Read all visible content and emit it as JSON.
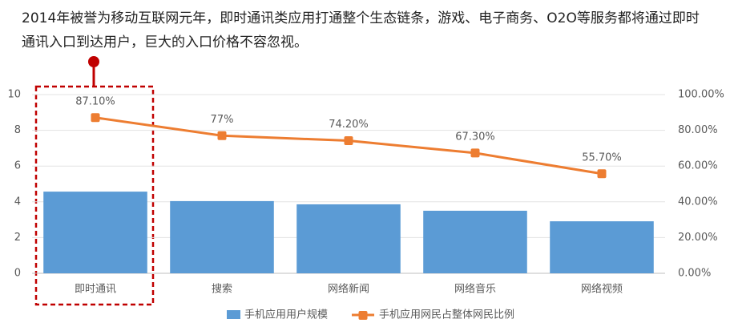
{
  "intro": "2014年被誉为移动互联网元年，即时通讯类应用打通整个生态链条，游戏、电子商务、O2O等服务都将通过即时通讯入口到达用户，巨大的入口价格不容忽视。",
  "chart_data": {
    "type": "combo",
    "categories": [
      "即时通讯",
      "搜索",
      "网络新闻",
      "网络音乐",
      "网络视频"
    ],
    "series": [
      {
        "name": "手机应用用户规模",
        "type": "bar",
        "color": "#5b9bd5",
        "values": [
          4.57,
          4.04,
          3.86,
          3.5,
          2.91
        ]
      },
      {
        "name": "手机应用网民占整体网民比例",
        "type": "line",
        "axis": "y2",
        "color": "#ed7d31",
        "values": [
          87.1,
          77,
          74.2,
          67.3,
          55.7
        ],
        "value_labels": [
          "87.10%",
          "77%",
          "74.20%",
          "67.30%",
          "55.70%"
        ]
      }
    ],
    "ylim": [
      0,
      10
    ],
    "yticks": [
      0,
      2,
      4,
      6,
      8,
      10
    ],
    "y2lim": [
      0,
      100
    ],
    "y2ticks": [
      {
        "value": 0,
        "label": "0.00%"
      },
      {
        "value": 20,
        "label": "20.00%"
      },
      {
        "value": 40,
        "label": "40.00%"
      },
      {
        "value": 60,
        "label": "60.00%"
      },
      {
        "value": 80,
        "label": "80.00%"
      },
      {
        "value": 100,
        "label": "100.00%"
      }
    ],
    "grid": true,
    "legend": "bottom"
  }
}
